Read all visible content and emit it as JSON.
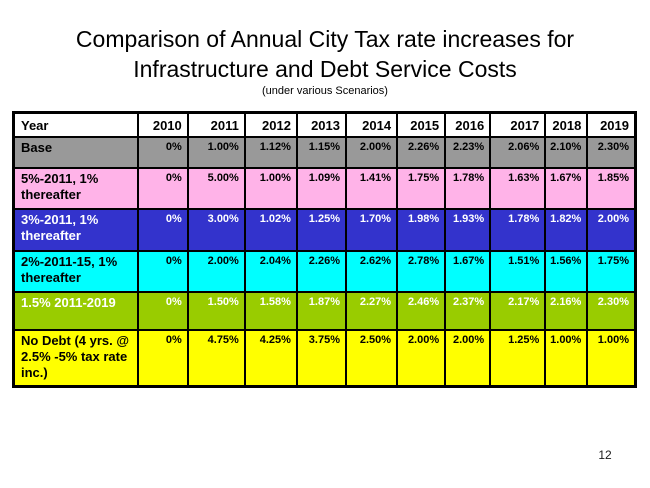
{
  "slide": {
    "title_line1": "Comparison of Annual City Tax rate increases for",
    "title_line2": "Infrastructure and Debt Service Costs",
    "subtitle": "(under various Scenarios)",
    "page_number": "12"
  },
  "table": {
    "header": [
      "Year",
      "2010",
      "2011",
      "2012",
      "2013",
      "2014",
      "2015",
      "2016",
      "2017",
      "2018",
      "2019"
    ],
    "rows": [
      {
        "label": "Base",
        "bg": "#999999",
        "fg": "#000000",
        "values": [
          "0%",
          "1.00%",
          "1.12%",
          "1.15%",
          "2.00%",
          "2.26%",
          "2.23%",
          "2.06%",
          "2.10%",
          "2.30%"
        ]
      },
      {
        "label": "5%-2011, 1% thereafter",
        "bg": "#FFB3E8",
        "fg": "#000000",
        "values": [
          "0%",
          "5.00%",
          "1.00%",
          "1.09%",
          "1.41%",
          "1.75%",
          "1.78%",
          "1.63%",
          "1.67%",
          "1.85%"
        ]
      },
      {
        "label": "3%-2011, 1% thereafter",
        "bg": "#3333CC",
        "fg": "#FFFFFF",
        "values": [
          "0%",
          "3.00%",
          "1.02%",
          "1.25%",
          "1.70%",
          "1.98%",
          "1.93%",
          "1.78%",
          "1.82%",
          "2.00%"
        ]
      },
      {
        "label": "2%-2011-15, 1% thereafter",
        "bg": "#00FFFF",
        "fg": "#000000",
        "values": [
          "0%",
          "2.00%",
          "2.04%",
          "2.26%",
          "2.62%",
          "2.78%",
          "1.67%",
          "1.51%",
          "1.56%",
          "1.75%"
        ]
      },
      {
        "label": "1.5% 2011-2019",
        "bg": "#99CC00",
        "fg": "#FFFFFF",
        "values": [
          "0%",
          "1.50%",
          "1.58%",
          "1.87%",
          "2.27%",
          "2.46%",
          "2.37%",
          "2.17%",
          "2.16%",
          "2.30%"
        ]
      },
      {
        "label": "No Debt (4 yrs. @ 2.5% -5% tax rate inc.)",
        "bg": "#FFFF00",
        "fg": "#000000",
        "values": [
          "0%",
          "4.75%",
          "4.25%",
          "3.75%",
          "2.50%",
          "2.00%",
          "2.00%",
          "1.25%",
          "1.00%",
          "1.00%"
        ]
      }
    ]
  },
  "chart_data": {
    "type": "table",
    "title": "Comparison of Annual City Tax rate increases for Infrastructure and Debt Service Costs",
    "subtitle": "(under various Scenarios)",
    "categories": [
      "2010",
      "2011",
      "2012",
      "2013",
      "2014",
      "2015",
      "2016",
      "2017",
      "2018",
      "2019"
    ],
    "series": [
      {
        "name": "Base",
        "values": [
          0,
          1.0,
          1.12,
          1.15,
          2.0,
          2.26,
          2.23,
          2.06,
          2.1,
          2.3
        ]
      },
      {
        "name": "5%-2011, 1% thereafter",
        "values": [
          0,
          5.0,
          1.0,
          1.09,
          1.41,
          1.75,
          1.78,
          1.63,
          1.67,
          1.85
        ]
      },
      {
        "name": "3%-2011, 1% thereafter",
        "values": [
          0,
          3.0,
          1.02,
          1.25,
          1.7,
          1.98,
          1.93,
          1.78,
          1.82,
          2.0
        ]
      },
      {
        "name": "2%-2011-15, 1% thereafter",
        "values": [
          0,
          2.0,
          2.04,
          2.26,
          2.62,
          2.78,
          1.67,
          1.51,
          1.56,
          1.75
        ]
      },
      {
        "name": "1.5% 2011-2019",
        "values": [
          0,
          1.5,
          1.58,
          1.87,
          2.27,
          2.46,
          2.37,
          2.17,
          2.16,
          2.3
        ]
      },
      {
        "name": "No Debt (4 yrs. @ 2.5% -5% tax rate inc.)",
        "values": [
          0,
          4.75,
          4.25,
          3.75,
          2.5,
          2.0,
          2.0,
          1.25,
          1.0,
          1.0
        ]
      }
    ],
    "units": "percent"
  }
}
